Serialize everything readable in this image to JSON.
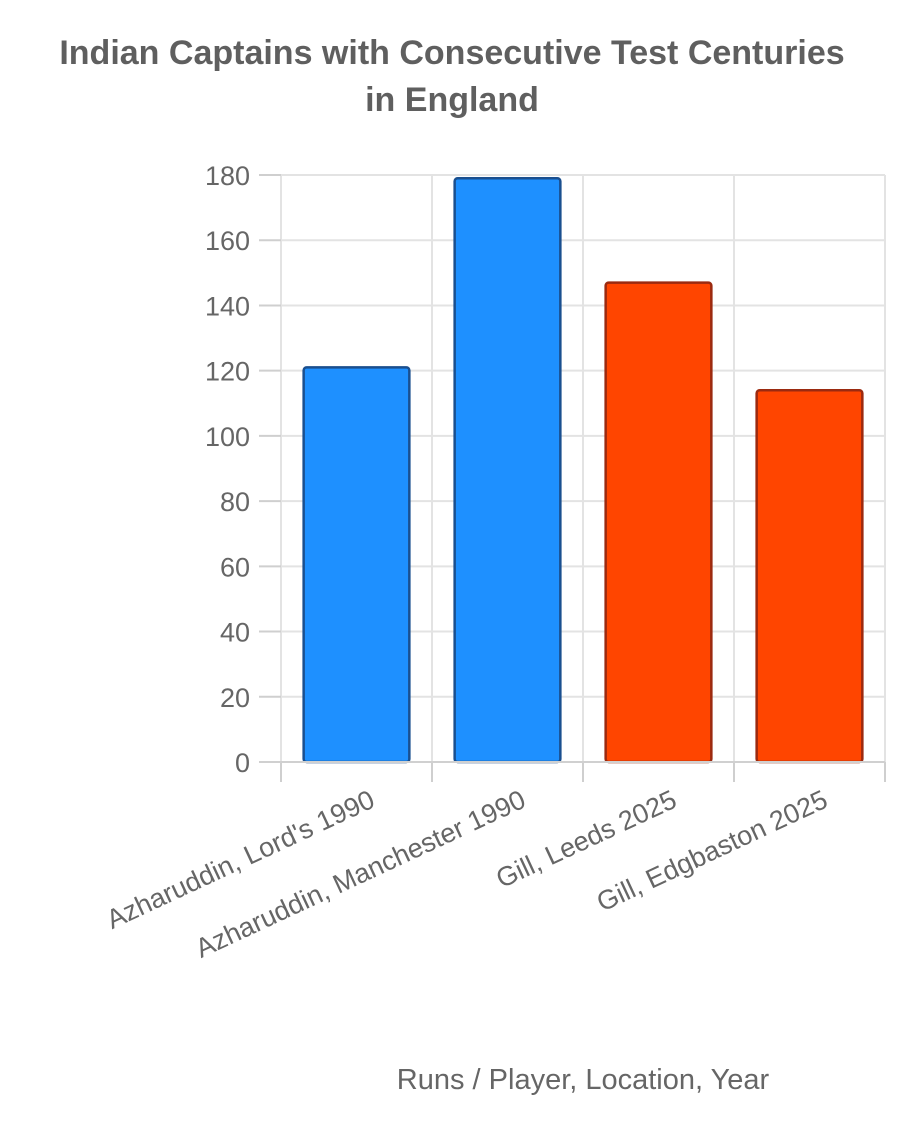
{
  "chart_data": {
    "type": "bar",
    "title_lines": [
      "Indian Captains with Consecutive Test Centuries",
      "in England"
    ],
    "xlabel": "Runs / Player, Location, Year",
    "categories": [
      "Azharuddin, Lord's 1990",
      "Azharuddin, Manchester 1990",
      "Gill, Leeds 2025",
      "Gill, Edgbaston 2025"
    ],
    "values": [
      121,
      179,
      147,
      114
    ],
    "bar_colors": [
      "#1e90ff",
      "#1e90ff",
      "#ff4500",
      "#ff4500"
    ],
    "bar_edge_colors": [
      "#1a4f8f",
      "#1a4f8f",
      "#9b2a10",
      "#9b2a10"
    ],
    "ylim": [
      0,
      180
    ],
    "yticks": [
      0,
      20,
      40,
      60,
      80,
      100,
      120,
      140,
      160,
      180
    ],
    "grid": true
  }
}
